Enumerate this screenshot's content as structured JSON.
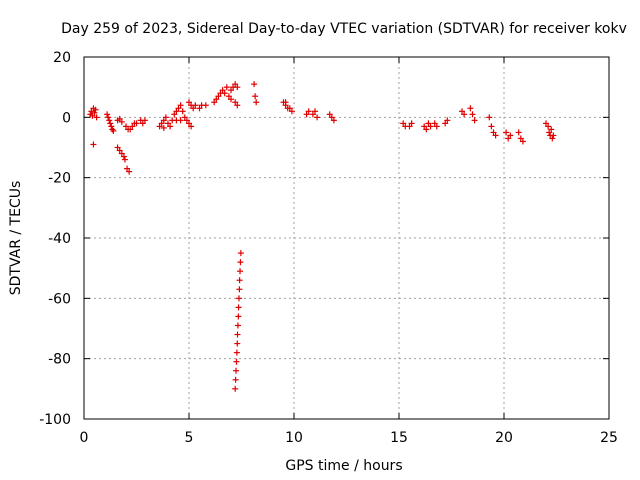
{
  "chart_data": {
    "type": "scatter",
    "title": "Day 259 of 2023, Sidereal Day-to-day VTEC variation (SDTVAR) for receiver kokv",
    "xlabel": "GPS time / hours",
    "ylabel": "SDTVAR / TECUs",
    "xlim": [
      0,
      25
    ],
    "ylim": [
      -100,
      20
    ],
    "xticks": [
      0,
      5,
      10,
      15,
      20,
      25
    ],
    "yticks": [
      -100,
      -80,
      -60,
      -40,
      -20,
      0,
      20
    ],
    "grid": true,
    "marker": "+",
    "color": "#e00000",
    "series": [
      {
        "name": "SDTVAR",
        "points": [
          [
            0.3,
            1
          ],
          [
            0.35,
            2
          ],
          [
            0.4,
            0.5
          ],
          [
            0.45,
            3
          ],
          [
            0.5,
            1.5
          ],
          [
            0.55,
            2.5
          ],
          [
            0.6,
            0
          ],
          [
            0.45,
            -9
          ],
          [
            1.1,
            1
          ],
          [
            1.15,
            0
          ],
          [
            1.2,
            -1
          ],
          [
            1.25,
            -2
          ],
          [
            1.3,
            -3
          ],
          [
            1.35,
            -4
          ],
          [
            1.4,
            -4.5
          ],
          [
            1.6,
            -10
          ],
          [
            1.7,
            -11
          ],
          [
            1.8,
            -12
          ],
          [
            1.9,
            -13
          ],
          [
            1.95,
            -14
          ],
          [
            2.05,
            -17
          ],
          [
            2.15,
            -18
          ],
          [
            1.6,
            -1
          ],
          [
            1.7,
            -0.5
          ],
          [
            1.8,
            -1.5
          ],
          [
            2.0,
            -3
          ],
          [
            2.1,
            -4
          ],
          [
            2.2,
            -4
          ],
          [
            2.3,
            -3
          ],
          [
            2.4,
            -2
          ],
          [
            2.5,
            -2
          ],
          [
            2.7,
            -1
          ],
          [
            2.8,
            -2
          ],
          [
            2.9,
            -1
          ],
          [
            3.6,
            -3
          ],
          [
            3.7,
            -2
          ],
          [
            3.8,
            -1
          ],
          [
            3.9,
            0
          ],
          [
            4.0,
            -2
          ],
          [
            4.1,
            -3
          ],
          [
            4.2,
            -1
          ],
          [
            3.8,
            -3.5
          ],
          [
            4.3,
            1
          ],
          [
            4.4,
            2
          ],
          [
            4.5,
            3
          ],
          [
            4.6,
            4
          ],
          [
            4.7,
            2
          ],
          [
            4.8,
            0
          ],
          [
            4.9,
            -1
          ],
          [
            5.0,
            -2
          ],
          [
            5.1,
            -3
          ],
          [
            4.4,
            -1
          ],
          [
            4.6,
            -1
          ],
          [
            5.0,
            5
          ],
          [
            5.1,
            4
          ],
          [
            5.2,
            3
          ],
          [
            5.3,
            4
          ],
          [
            5.5,
            3
          ],
          [
            5.6,
            4
          ],
          [
            5.8,
            4
          ],
          [
            6.2,
            5
          ],
          [
            6.3,
            6
          ],
          [
            6.4,
            7
          ],
          [
            6.5,
            8
          ],
          [
            6.6,
            9
          ],
          [
            6.7,
            8
          ],
          [
            6.8,
            10
          ],
          [
            7.0,
            9
          ],
          [
            7.1,
            10
          ],
          [
            7.2,
            11
          ],
          [
            7.3,
            10
          ],
          [
            6.9,
            7
          ],
          [
            7.0,
            6
          ],
          [
            7.2,
            5
          ],
          [
            7.3,
            4
          ],
          [
            7.2,
            -90
          ],
          [
            7.22,
            -87
          ],
          [
            7.24,
            -84
          ],
          [
            7.26,
            -81
          ],
          [
            7.28,
            -78
          ],
          [
            7.3,
            -75
          ],
          [
            7.31,
            -72
          ],
          [
            7.33,
            -69
          ],
          [
            7.35,
            -66
          ],
          [
            7.36,
            -63
          ],
          [
            7.38,
            -60
          ],
          [
            7.4,
            -57
          ],
          [
            7.41,
            -54
          ],
          [
            7.43,
            -51
          ],
          [
            7.45,
            -48
          ],
          [
            7.47,
            -45
          ],
          [
            8.1,
            11
          ],
          [
            8.15,
            7
          ],
          [
            8.2,
            5
          ],
          [
            9.5,
            5
          ],
          [
            9.6,
            4
          ],
          [
            9.7,
            3
          ],
          [
            9.8,
            3
          ],
          [
            9.9,
            2
          ],
          [
            9.6,
            5
          ],
          [
            10.6,
            1
          ],
          [
            10.7,
            2
          ],
          [
            10.9,
            1
          ],
          [
            11.0,
            2
          ],
          [
            11.1,
            0
          ],
          [
            11.7,
            1
          ],
          [
            11.8,
            0
          ],
          [
            11.9,
            -1
          ],
          [
            15.2,
            -2
          ],
          [
            15.3,
            -3
          ],
          [
            15.5,
            -3
          ],
          [
            15.6,
            -2
          ],
          [
            16.2,
            -3
          ],
          [
            16.3,
            -4
          ],
          [
            16.4,
            -2
          ],
          [
            16.5,
            -3
          ],
          [
            16.7,
            -2
          ],
          [
            16.8,
            -3
          ],
          [
            17.2,
            -2
          ],
          [
            17.3,
            -1
          ],
          [
            18.0,
            2
          ],
          [
            18.1,
            1
          ],
          [
            18.4,
            3
          ],
          [
            18.5,
            1
          ],
          [
            18.6,
            -1
          ],
          [
            19.3,
            0
          ],
          [
            19.4,
            -3
          ],
          [
            19.5,
            -5
          ],
          [
            19.6,
            -6
          ],
          [
            20.1,
            -5
          ],
          [
            20.2,
            -7
          ],
          [
            20.3,
            -6
          ],
          [
            20.7,
            -5
          ],
          [
            20.8,
            -7
          ],
          [
            20.9,
            -8
          ],
          [
            22.0,
            -2
          ],
          [
            22.1,
            -3
          ],
          [
            22.15,
            -5
          ],
          [
            22.2,
            -6
          ],
          [
            22.25,
            -4
          ],
          [
            22.3,
            -7
          ],
          [
            22.35,
            -6
          ]
        ]
      }
    ]
  }
}
